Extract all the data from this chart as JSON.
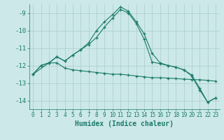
{
  "xlabel": "Humidex (Indice chaleur)",
  "bg_color": "#cce8e8",
  "grid_color": "#aacccc",
  "line_color": "#1a7a6a",
  "xlim": [
    -0.5,
    23.5
  ],
  "ylim": [
    -14.5,
    -8.5
  ],
  "yticks": [
    -14,
    -13,
    -12,
    -11,
    -10,
    -9
  ],
  "xticks": [
    0,
    1,
    2,
    3,
    4,
    5,
    6,
    7,
    8,
    9,
    10,
    11,
    12,
    13,
    14,
    15,
    16,
    17,
    18,
    19,
    20,
    21,
    22,
    23
  ],
  "line1_x": [
    0,
    1,
    2,
    3,
    4,
    5,
    6,
    7,
    8,
    9,
    10,
    11,
    12,
    13,
    14,
    15,
    16,
    17,
    18,
    19,
    20,
    21,
    22,
    23
  ],
  "line1_y": [
    -12.5,
    -12.0,
    -11.85,
    -11.5,
    -11.75,
    -11.4,
    -11.1,
    -10.7,
    -10.0,
    -9.5,
    -9.1,
    -8.65,
    -8.9,
    -9.5,
    -10.2,
    -11.3,
    -11.85,
    -12.0,
    -12.1,
    -12.25,
    -12.55,
    -13.3,
    -14.1,
    -13.85
  ],
  "line2_x": [
    0,
    1,
    2,
    3,
    4,
    5,
    6,
    7,
    8,
    9,
    10,
    11,
    12,
    13,
    14,
    15,
    16,
    17,
    18,
    19,
    20,
    21,
    22,
    23
  ],
  "line2_y": [
    -12.5,
    -12.0,
    -11.85,
    -11.85,
    -12.15,
    -12.25,
    -12.3,
    -12.35,
    -12.4,
    -12.45,
    -12.5,
    -12.5,
    -12.55,
    -12.6,
    -12.65,
    -12.7,
    -12.7,
    -12.72,
    -12.75,
    -12.78,
    -12.8,
    -12.82,
    -12.85,
    -12.9
  ],
  "line3_x": [
    0,
    2,
    3,
    4,
    5,
    6,
    7,
    8,
    9,
    10,
    11,
    12,
    13,
    14,
    15,
    16,
    17,
    18,
    19,
    20,
    21,
    22,
    23
  ],
  "line3_y": [
    -12.5,
    -11.85,
    -11.5,
    -11.75,
    -11.4,
    -11.1,
    -10.8,
    -10.4,
    -9.8,
    -9.3,
    -8.8,
    -9.0,
    -9.6,
    -10.5,
    -11.8,
    -11.9,
    -12.0,
    -12.1,
    -12.25,
    -12.6,
    -13.4,
    -14.1,
    -13.85
  ]
}
